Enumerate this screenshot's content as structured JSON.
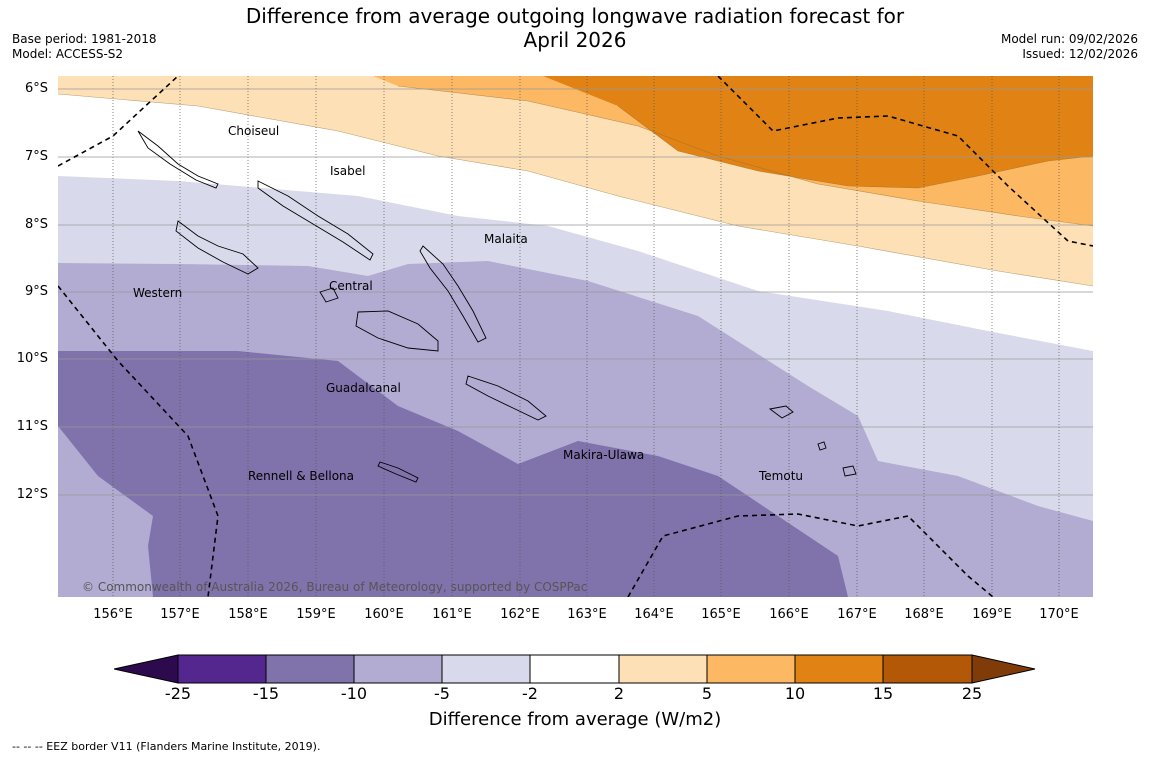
{
  "header": {
    "title_line1": "Difference from average outgoing longwave radiation forecast for",
    "title_line2": "April 2026",
    "base_period": "Base period: 1981-2018",
    "model": "Model: ACCESS-S2",
    "model_run": "Model run: 09/02/2026",
    "issued": "Issued: 12/02/2026"
  },
  "axes": {
    "lat_labels": [
      "6°S",
      "7°S",
      "8°S",
      "9°S",
      "10°S",
      "11°S",
      "12°S"
    ],
    "lon_labels": [
      "156°E",
      "157°E",
      "158°E",
      "159°E",
      "160°E",
      "161°E",
      "162°E",
      "163°E",
      "164°E",
      "165°E",
      "166°E",
      "167°E",
      "168°E",
      "169°E",
      "170°E"
    ]
  },
  "places": [
    "Choiseul",
    "Isabel",
    "Malaita",
    "Western",
    "Central",
    "Guadalcanal",
    "Makira-Ulawa",
    "Rennell & Bellona",
    "Temotu"
  ],
  "copyright": "© Commonwealth of Australia 2026, Bureau of Meteorology, supported by COSPPac",
  "colorbar": {
    "ticks": [
      "-25",
      "-15",
      "-10",
      "-5",
      "-2",
      "2",
      "5",
      "10",
      "15",
      "25"
    ],
    "colors": [
      "#2d0a4e",
      "#54278f",
      "#8073ac",
      "#b2abd2",
      "#d8daeb",
      "#ffffff",
      "#fee0b6",
      "#fdb863",
      "#e08214",
      "#b35806",
      "#7f3b08"
    ],
    "label": "Difference from average (W/m2)"
  },
  "footer": {
    "eez": "--  --  -- EEZ border V11 (Flanders Marine Institute, 2019)."
  }
}
